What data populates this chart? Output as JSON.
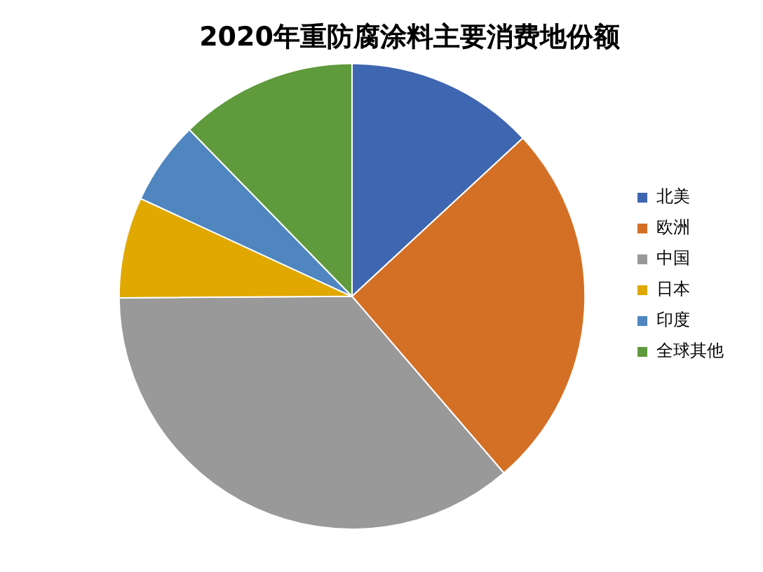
{
  "chart_data": {
    "type": "pie",
    "title": "2020年重防腐涂料主要消费地份额",
    "categories": [
      "北美",
      "欧洲",
      "中国",
      "日本",
      "印度",
      "全球其他"
    ],
    "values": [
      13.1,
      25.6,
      36.2,
      7.0,
      5.8,
      12.3
    ],
    "colors": [
      "#3f66b0",
      "#d47026",
      "#999999",
      "#e0a800",
      "#4f86c0",
      "#5f9a3c"
    ],
    "legend": "right"
  }
}
